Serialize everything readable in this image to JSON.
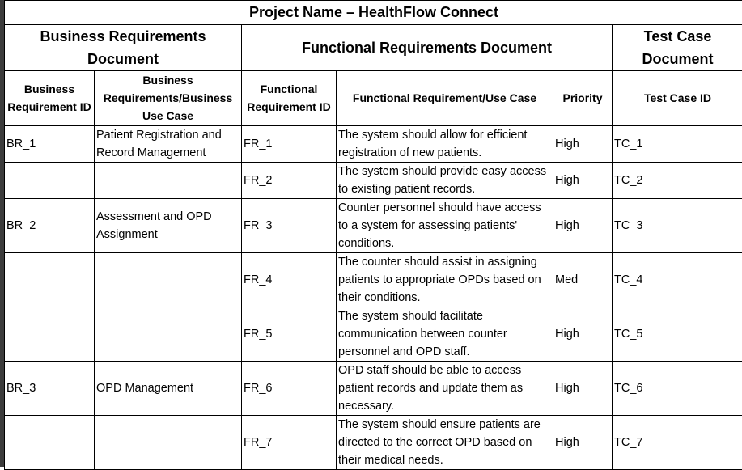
{
  "project_title": "Project Name – HealthFlow Connect",
  "sections": {
    "business": "Business Requirements Document",
    "functional": "Functional Requirements Document",
    "test": "Test Case Document"
  },
  "columns": {
    "br_id": "Business Requirement ID",
    "br_usecase": "Business Requirements/Business Use Case",
    "fr_id": "Functional Requirement ID",
    "fr_usecase": "Functional Requirement/Use Case",
    "priority": "Priority",
    "tc_id": "Test Case ID"
  },
  "rows": [
    {
      "br_id": "BR_1",
      "br_usecase": "Patient Registration and Record Management",
      "fr_id": "FR_1",
      "fr_usecase": "The system should allow for efficient registration of new patients.",
      "priority": "High",
      "tc_id": "TC_1"
    },
    {
      "br_id": "",
      "br_usecase": "",
      "fr_id": "FR_2",
      "fr_usecase": "The system should provide easy access to existing patient records.",
      "priority": "High",
      "tc_id": "TC_2"
    },
    {
      "br_id": "BR_2",
      "br_usecase": "Assessment and OPD Assignment",
      "fr_id": "FR_3",
      "fr_usecase": "Counter personnel should have access to a system for assessing patients' conditions.",
      "priority": "High",
      "tc_id": "TC_3"
    },
    {
      "br_id": "",
      "br_usecase": "",
      "fr_id": "FR_4",
      "fr_usecase": "The counter should assist in assigning patients to appropriate OPDs based on their conditions.",
      "priority": "Med",
      "tc_id": "TC_4"
    },
    {
      "br_id": "",
      "br_usecase": "",
      "fr_id": "FR_5",
      "fr_usecase": "The system should facilitate communication between counter personnel and OPD staff.",
      "priority": "High",
      "tc_id": "TC_5"
    },
    {
      "br_id": "BR_3",
      "br_usecase": "OPD Management",
      "fr_id": "FR_6",
      "fr_usecase": "OPD staff should be able to access patient records and update them as necessary.",
      "priority": "High",
      "tc_id": "TC_6"
    },
    {
      "br_id": "",
      "br_usecase": "",
      "fr_id": "FR_7",
      "fr_usecase": "The system should ensure patients are directed to the correct OPD based on their medical needs.",
      "priority": "High",
      "tc_id": "TC_7"
    }
  ]
}
